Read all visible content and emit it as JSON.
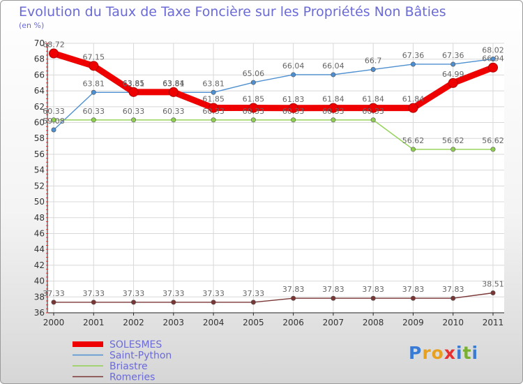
{
  "title": "Evolution du Taux de Taxe Foncière sur les Propriétés Non Bâties",
  "unit_label": "(en %)",
  "logo": {
    "text": "Proxiti",
    "letters": [
      "P",
      "r",
      "o",
      "x",
      "i",
      "t",
      "i"
    ],
    "colors": [
      "#3a7bd5",
      "#e8a020",
      "#e8a020",
      "#e83030",
      "#3a7bd5",
      "#78b030",
      "#3a7bd5"
    ]
  },
  "chart_data": {
    "type": "line",
    "title": "Evolution du Taux de Taxe Foncière sur les Propriétés Non Bâties",
    "ylabel": "(en %)",
    "xlabel": "",
    "x": [
      "2000",
      "2001",
      "2002",
      "2003",
      "2004",
      "2005",
      "2006",
      "2007",
      "2008",
      "2009",
      "2010",
      "2011"
    ],
    "ylim": [
      36,
      70
    ],
    "yticks": [
      36,
      38,
      40,
      42,
      44,
      46,
      48,
      50,
      52,
      54,
      56,
      58,
      60,
      62,
      64,
      66,
      68,
      70
    ],
    "grid": true,
    "legend_position": "bottom-left",
    "series": [
      {
        "name": "SOLESMES",
        "color": "#ee0000",
        "thick": true,
        "values": [
          68.72,
          67.15,
          63.85,
          63.84,
          61.85,
          61.85,
          61.83,
          61.84,
          61.84,
          61.84,
          64.99,
          66.94
        ],
        "labels": [
          "68.72",
          "67.15",
          "63.85",
          "63.84",
          "61.85",
          "61.85",
          "61.83",
          "61.84",
          "61.84",
          "61.84",
          "64.99",
          "66.94"
        ]
      },
      {
        "name": "Saint-Python",
        "color": "#4d8fd0",
        "thick": false,
        "values": [
          59.08,
          63.81,
          63.81,
          63.81,
          63.81,
          65.06,
          66.04,
          66.04,
          66.7,
          67.36,
          67.36,
          68.02
        ],
        "labels": [
          "59.08",
          "63.81",
          "63.81",
          "63.81",
          "63.81",
          "65.06",
          "66.04",
          "66.04",
          "66.7",
          "67.36",
          "67.36",
          "68.02"
        ]
      },
      {
        "name": "Briastre",
        "color": "#90d050",
        "thick": false,
        "values": [
          60.33,
          60.33,
          60.33,
          60.33,
          60.33,
          60.33,
          60.33,
          60.33,
          60.33,
          56.62,
          56.62,
          56.62
        ],
        "labels": [
          "60.33",
          "60.33",
          "60.33",
          "60.33",
          "60.33",
          "60.33",
          "60.33",
          "60.33",
          "60.33",
          "56.62",
          "56.62",
          "56.62"
        ]
      },
      {
        "name": "Romeries",
        "color": "#7a3535",
        "thick": false,
        "values": [
          37.33,
          37.33,
          37.33,
          37.33,
          37.33,
          37.33,
          37.83,
          37.83,
          37.83,
          37.83,
          37.83,
          38.51
        ],
        "labels": [
          "37.33",
          "37.33",
          "37.33",
          "37.33",
          "37.33",
          "37.33",
          "37.83",
          "37.83",
          "37.83",
          "37.83",
          "37.83",
          "38.51"
        ]
      }
    ]
  }
}
